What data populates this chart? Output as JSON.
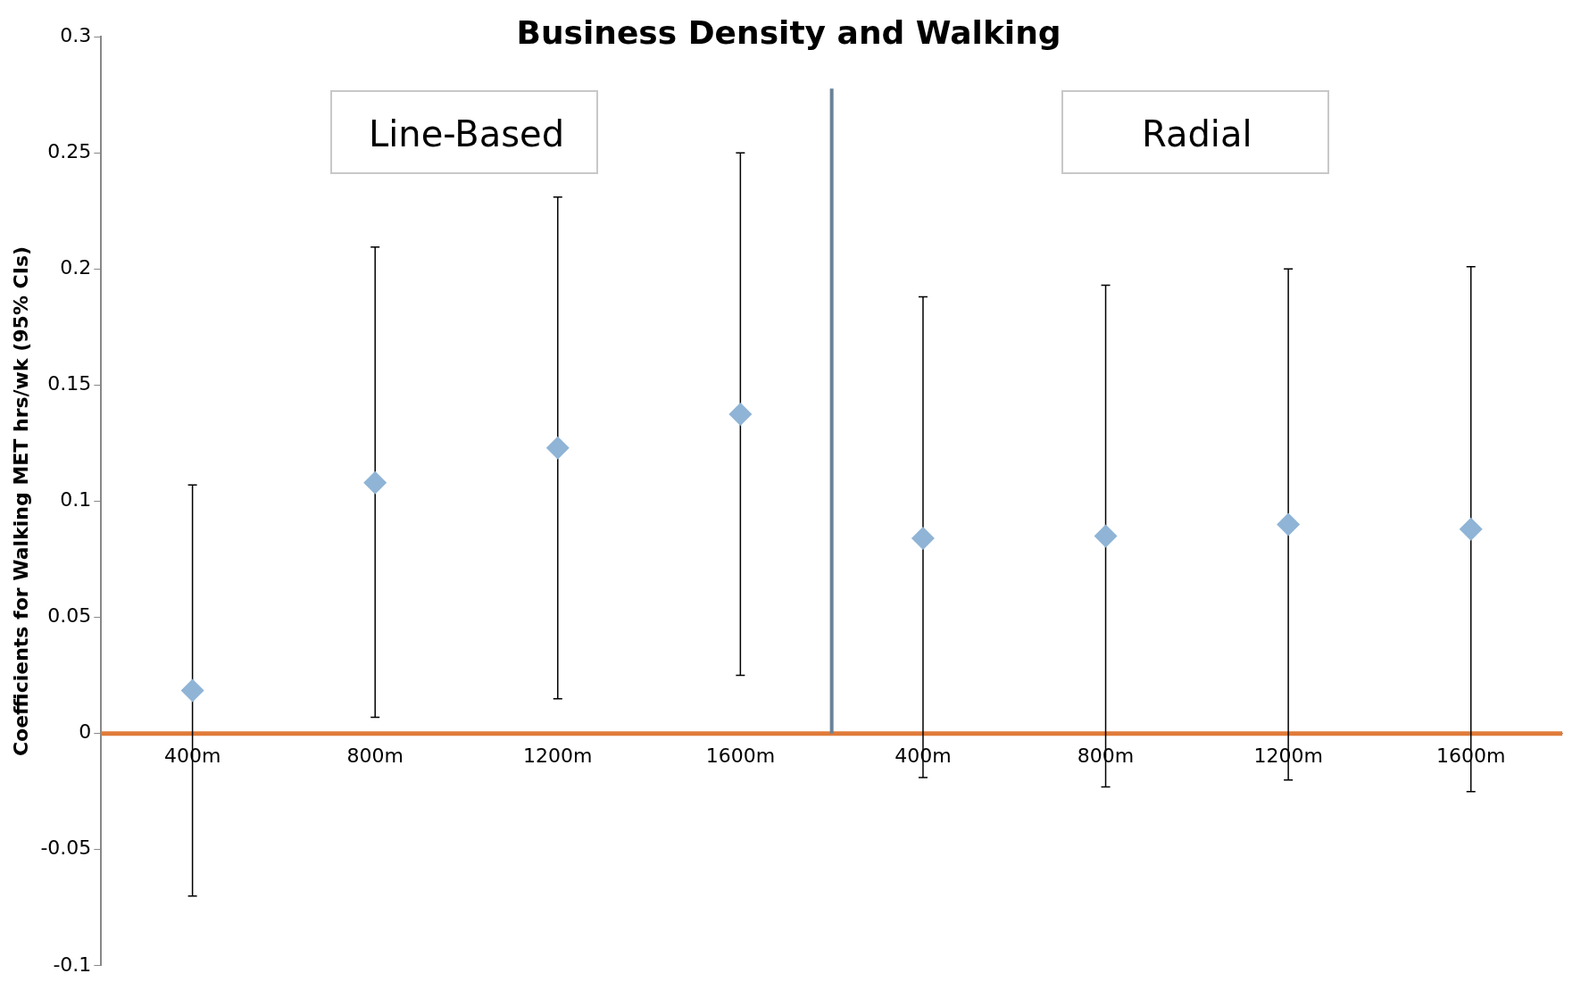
{
  "chart_data": {
    "type": "scatter",
    "title": "Business Density and Walking",
    "ylabel": "Coefficients for Walking MET hrs/wk (95% CIs)",
    "annotations": [
      "Line-Based",
      "Radial"
    ],
    "categories": [
      "400m",
      "800m",
      "1200m",
      "1600m",
      "400m",
      "800m",
      "1200m",
      "1600m"
    ],
    "series": [
      {
        "color": "#8fb4d6",
        "values": [
          0.0185,
          0.108,
          0.123,
          0.1375,
          0.084,
          0.085,
          0.09,
          0.088
        ],
        "errors": [
          [
            -0.07,
            0.107
          ],
          [
            0.007,
            0.2095
          ],
          [
            0.015,
            0.231
          ],
          [
            0.025,
            0.25
          ],
          [
            -0.019,
            0.188
          ],
          [
            -0.023,
            0.193
          ],
          [
            -0.02,
            0.2
          ],
          [
            -0.025,
            0.201
          ]
        ]
      }
    ],
    "ylim": [
      -0.1,
      0.3
    ],
    "yticks": [
      -0.1,
      -0.05,
      0,
      0.05,
      0.1,
      0.15,
      0.2,
      0.25,
      0.3
    ],
    "ref_lines": [
      {
        "axis": "y",
        "value": 0,
        "color": "#e07b39"
      }
    ],
    "marker": "diamond",
    "grid": false,
    "legend": false
  }
}
